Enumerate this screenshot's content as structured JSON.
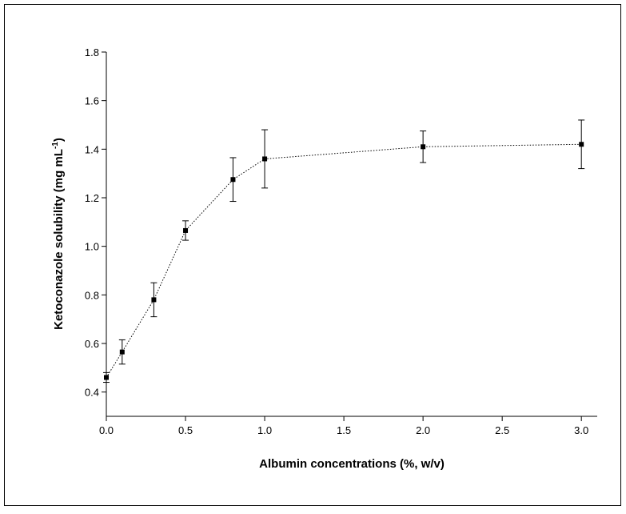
{
  "chart_data": {
    "type": "scatter",
    "x_label": "Albumin concentrations (%, w/v)",
    "y_label_parts": [
      "Ketoconazole solubility (mg mL",
      "-1",
      ")"
    ],
    "x": [
      0,
      0.1,
      0.3,
      0.5,
      0.8,
      1.0,
      2.0,
      3.0
    ],
    "series": [
      {
        "color": "#000000",
        "values": [
          0.46,
          0.565,
          0.78,
          1.065,
          1.275,
          1.36,
          1.41,
          1.42
        ],
        "errors": [
          0.02,
          0.05,
          0.07,
          0.04,
          0.09,
          0.12,
          0.065,
          0.1
        ]
      }
    ],
    "xlim": [
      0,
      3.1
    ],
    "ylim": [
      0.3,
      1.8
    ],
    "xticks": [
      {
        "value": 0,
        "label": "0.0"
      },
      0.5,
      {
        "value": 1,
        "label": "1.0"
      },
      1.5,
      {
        "value": 2,
        "label": "2.0"
      },
      2.5,
      {
        "value": 3,
        "label": "3.0"
      }
    ],
    "yticks": [
      0.4,
      0.6,
      0.8,
      {
        "value": 1,
        "label": "1.0"
      },
      1.2,
      1.4,
      1.6,
      1.8
    ],
    "grid": false
  }
}
